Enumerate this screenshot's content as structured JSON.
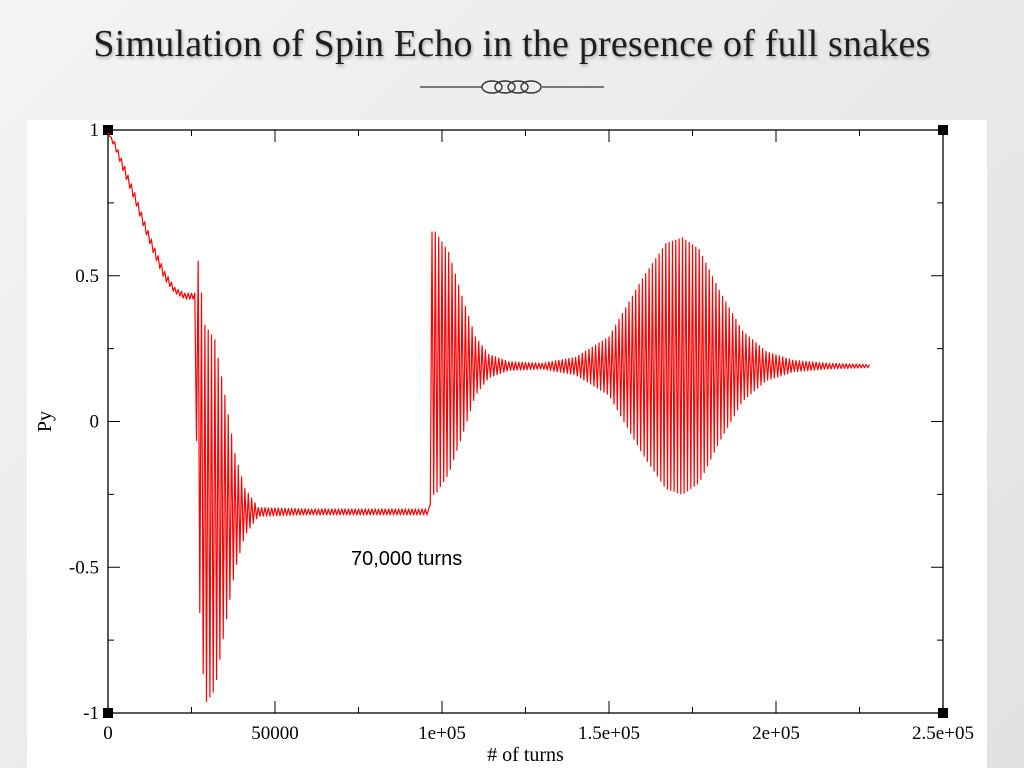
{
  "slide": {
    "title": "Simulation of Spin Echo in the presence of full snakes"
  },
  "colors": {
    "series": "#ff0000",
    "axis": "#000000",
    "background": "#ffffff"
  },
  "chart_data": {
    "type": "line",
    "title": "",
    "xlabel": "# of turns",
    "ylabel": "Py",
    "xlim": [
      0,
      250000
    ],
    "ylim": [
      -1,
      1
    ],
    "x_ticks": [
      0,
      50000,
      100000,
      150000,
      200000,
      250000
    ],
    "x_tick_labels": [
      "0",
      "50000",
      "1e+05",
      "1.5e+05",
      "2e+05",
      "2.5e+05"
    ],
    "y_ticks": [
      -1,
      -0.5,
      0,
      0.5,
      1
    ],
    "y_tick_labels": [
      "-1",
      "-0.5",
      "0",
      "0.5",
      "1"
    ],
    "grid": false,
    "annotation": "70,000 turns",
    "series": [
      {
        "color": "#ff0000",
        "envelope": [
          {
            "x": 0,
            "center": 0.99,
            "amp": 0.0
          },
          {
            "x": 2000,
            "center": 0.95,
            "amp": 0.01
          },
          {
            "x": 5000,
            "center": 0.86,
            "amp": 0.015
          },
          {
            "x": 8000,
            "center": 0.77,
            "amp": 0.015
          },
          {
            "x": 11000,
            "center": 0.67,
            "amp": 0.015
          },
          {
            "x": 14000,
            "center": 0.58,
            "amp": 0.015
          },
          {
            "x": 17000,
            "center": 0.5,
            "amp": 0.015
          },
          {
            "x": 20000,
            "center": 0.45,
            "amp": 0.01
          },
          {
            "x": 23000,
            "center": 0.43,
            "amp": 0.01
          },
          {
            "x": 26000,
            "center": 0.43,
            "amp": 0.01
          },
          {
            "x": 27000,
            "center": 0.0,
            "amp": 0.55
          },
          {
            "x": 29000,
            "center": -0.32,
            "amp": 0.65
          },
          {
            "x": 32000,
            "center": -0.32,
            "amp": 0.6
          },
          {
            "x": 35000,
            "center": -0.31,
            "amp": 0.4
          },
          {
            "x": 38000,
            "center": -0.31,
            "amp": 0.2
          },
          {
            "x": 41000,
            "center": -0.31,
            "amp": 0.08
          },
          {
            "x": 45000,
            "center": -0.31,
            "amp": 0.015
          },
          {
            "x": 60000,
            "center": -0.31,
            "amp": 0.01
          },
          {
            "x": 80000,
            "center": -0.31,
            "amp": 0.01
          },
          {
            "x": 96000,
            "center": -0.31,
            "amp": 0.01
          },
          {
            "x": 97000,
            "center": 0.2,
            "amp": 0.45
          },
          {
            "x": 98000,
            "center": 0.2,
            "amp": 0.45
          },
          {
            "x": 102000,
            "center": 0.2,
            "amp": 0.38
          },
          {
            "x": 106000,
            "center": 0.19,
            "amp": 0.24
          },
          {
            "x": 110000,
            "center": 0.19,
            "amp": 0.1
          },
          {
            "x": 114000,
            "center": 0.19,
            "amp": 0.04
          },
          {
            "x": 120000,
            "center": 0.19,
            "amp": 0.015
          },
          {
            "x": 130000,
            "center": 0.19,
            "amp": 0.01
          },
          {
            "x": 140000,
            "center": 0.19,
            "amp": 0.03
          },
          {
            "x": 150000,
            "center": 0.19,
            "amp": 0.1
          },
          {
            "x": 160000,
            "center": 0.19,
            "amp": 0.3
          },
          {
            "x": 167000,
            "center": 0.19,
            "amp": 0.42
          },
          {
            "x": 172000,
            "center": 0.19,
            "amp": 0.44
          },
          {
            "x": 177000,
            "center": 0.19,
            "amp": 0.4
          },
          {
            "x": 183000,
            "center": 0.19,
            "amp": 0.26
          },
          {
            "x": 190000,
            "center": 0.19,
            "amp": 0.12
          },
          {
            "x": 197000,
            "center": 0.19,
            "amp": 0.05
          },
          {
            "x": 205000,
            "center": 0.19,
            "amp": 0.02
          },
          {
            "x": 215000,
            "center": 0.19,
            "amp": 0.01
          },
          {
            "x": 228000,
            "center": 0.19,
            "amp": 0.005
          }
        ]
      }
    ]
  }
}
